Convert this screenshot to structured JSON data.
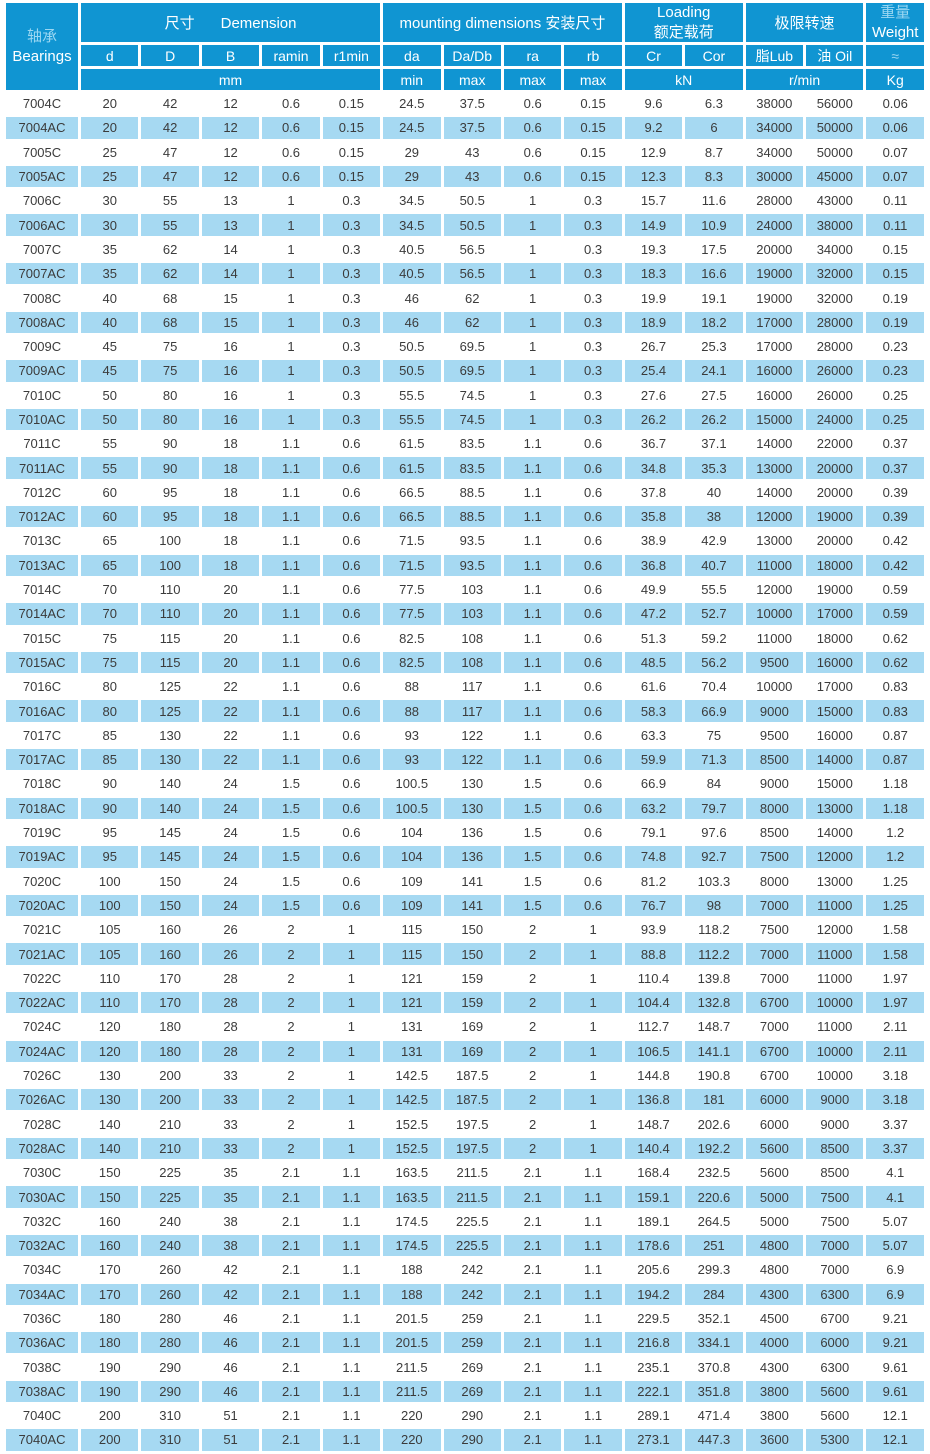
{
  "colors": {
    "header_bg": "#1095d2",
    "row_alt_bg": "#a6d9f2",
    "tint_text": "#9bd7f2",
    "body_text": "#3b3b3b"
  },
  "table": {
    "header": {
      "bearings_zh": "轴承",
      "bearings_en": "Bearings",
      "groups": {
        "dimension_zh": "尺寸",
        "dimension_en": "Demension",
        "mounting": "mounting dimensions 安装尺寸",
        "loading_en": "Loading",
        "loading_zh": "额定载荷",
        "speed": "极限转速",
        "weight_zh": "重量",
        "weight_en": "Weight"
      },
      "sub": [
        "d",
        "D",
        "B",
        "ramin",
        "r1min",
        "da",
        "Da/Db",
        "ra",
        "rb",
        "Cr",
        "Cor",
        "脂Lub",
        "油 Oil",
        "≈"
      ],
      "units": {
        "mm": "mm",
        "da": "min",
        "dadb": "max",
        "ra": "max",
        "rb": "max",
        "kn": "kN",
        "rmin": "r/min",
        "kg": "Kg"
      }
    },
    "rows": [
      [
        "7004C",
        "20",
        "42",
        "12",
        "0.6",
        "0.15",
        "24.5",
        "37.5",
        "0.6",
        "0.15",
        "9.6",
        "6.3",
        "38000",
        "56000",
        "0.06"
      ],
      [
        "7004AC",
        "20",
        "42",
        "12",
        "0.6",
        "0.15",
        "24.5",
        "37.5",
        "0.6",
        "0.15",
        "9.2",
        "6",
        "34000",
        "50000",
        "0.06"
      ],
      [
        "7005C",
        "25",
        "47",
        "12",
        "0.6",
        "0.15",
        "29",
        "43",
        "0.6",
        "0.15",
        "12.9",
        "8.7",
        "34000",
        "50000",
        "0.07"
      ],
      [
        "7005AC",
        "25",
        "47",
        "12",
        "0.6",
        "0.15",
        "29",
        "43",
        "0.6",
        "0.15",
        "12.3",
        "8.3",
        "30000",
        "45000",
        "0.07"
      ],
      [
        "7006C",
        "30",
        "55",
        "13",
        "1",
        "0.3",
        "34.5",
        "50.5",
        "1",
        "0.3",
        "15.7",
        "11.6",
        "28000",
        "43000",
        "0.11"
      ],
      [
        "7006AC",
        "30",
        "55",
        "13",
        "1",
        "0.3",
        "34.5",
        "50.5",
        "1",
        "0.3",
        "14.9",
        "10.9",
        "24000",
        "38000",
        "0.11"
      ],
      [
        "7007C",
        "35",
        "62",
        "14",
        "1",
        "0.3",
        "40.5",
        "56.5",
        "1",
        "0.3",
        "19.3",
        "17.5",
        "20000",
        "34000",
        "0.15"
      ],
      [
        "7007AC",
        "35",
        "62",
        "14",
        "1",
        "0.3",
        "40.5",
        "56.5",
        "1",
        "0.3",
        "18.3",
        "16.6",
        "19000",
        "32000",
        "0.15"
      ],
      [
        "7008C",
        "40",
        "68",
        "15",
        "1",
        "0.3",
        "46",
        "62",
        "1",
        "0.3",
        "19.9",
        "19.1",
        "19000",
        "32000",
        "0.19"
      ],
      [
        "7008AC",
        "40",
        "68",
        "15",
        "1",
        "0.3",
        "46",
        "62",
        "1",
        "0.3",
        "18.9",
        "18.2",
        "17000",
        "28000",
        "0.19"
      ],
      [
        "7009C",
        "45",
        "75",
        "16",
        "1",
        "0.3",
        "50.5",
        "69.5",
        "1",
        "0.3",
        "26.7",
        "25.3",
        "17000",
        "28000",
        "0.23"
      ],
      [
        "7009AC",
        "45",
        "75",
        "16",
        "1",
        "0.3",
        "50.5",
        "69.5",
        "1",
        "0.3",
        "25.4",
        "24.1",
        "16000",
        "26000",
        "0.23"
      ],
      [
        "7010C",
        "50",
        "80",
        "16",
        "1",
        "0.3",
        "55.5",
        "74.5",
        "1",
        "0.3",
        "27.6",
        "27.5",
        "16000",
        "26000",
        "0.25"
      ],
      [
        "7010AC",
        "50",
        "80",
        "16",
        "1",
        "0.3",
        "55.5",
        "74.5",
        "1",
        "0.3",
        "26.2",
        "26.2",
        "15000",
        "24000",
        "0.25"
      ],
      [
        "7011C",
        "55",
        "90",
        "18",
        "1.1",
        "0.6",
        "61.5",
        "83.5",
        "1.1",
        "0.6",
        "36.7",
        "37.1",
        "14000",
        "22000",
        "0.37"
      ],
      [
        "7011AC",
        "55",
        "90",
        "18",
        "1.1",
        "0.6",
        "61.5",
        "83.5",
        "1.1",
        "0.6",
        "34.8",
        "35.3",
        "13000",
        "20000",
        "0.37"
      ],
      [
        "7012C",
        "60",
        "95",
        "18",
        "1.1",
        "0.6",
        "66.5",
        "88.5",
        "1.1",
        "0.6",
        "37.8",
        "40",
        "14000",
        "20000",
        "0.39"
      ],
      [
        "7012AC",
        "60",
        "95",
        "18",
        "1.1",
        "0.6",
        "66.5",
        "88.5",
        "1.1",
        "0.6",
        "35.8",
        "38",
        "12000",
        "19000",
        "0.39"
      ],
      [
        "7013C",
        "65",
        "100",
        "18",
        "1.1",
        "0.6",
        "71.5",
        "93.5",
        "1.1",
        "0.6",
        "38.9",
        "42.9",
        "13000",
        "20000",
        "0.42"
      ],
      [
        "7013AC",
        "65",
        "100",
        "18",
        "1.1",
        "0.6",
        "71.5",
        "93.5",
        "1.1",
        "0.6",
        "36.8",
        "40.7",
        "11000",
        "18000",
        "0.42"
      ],
      [
        "7014C",
        "70",
        "110",
        "20",
        "1.1",
        "0.6",
        "77.5",
        "103",
        "1.1",
        "0.6",
        "49.9",
        "55.5",
        "12000",
        "19000",
        "0.59"
      ],
      [
        "7014AC",
        "70",
        "110",
        "20",
        "1.1",
        "0.6",
        "77.5",
        "103",
        "1.1",
        "0.6",
        "47.2",
        "52.7",
        "10000",
        "17000",
        "0.59"
      ],
      [
        "7015C",
        "75",
        "115",
        "20",
        "1.1",
        "0.6",
        "82.5",
        "108",
        "1.1",
        "0.6",
        "51.3",
        "59.2",
        "11000",
        "18000",
        "0.62"
      ],
      [
        "7015AC",
        "75",
        "115",
        "20",
        "1.1",
        "0.6",
        "82.5",
        "108",
        "1.1",
        "0.6",
        "48.5",
        "56.2",
        "9500",
        "16000",
        "0.62"
      ],
      [
        "7016C",
        "80",
        "125",
        "22",
        "1.1",
        "0.6",
        "88",
        "117",
        "1.1",
        "0.6",
        "61.6",
        "70.4",
        "10000",
        "17000",
        "0.83"
      ],
      [
        "7016AC",
        "80",
        "125",
        "22",
        "1.1",
        "0.6",
        "88",
        "117",
        "1.1",
        "0.6",
        "58.3",
        "66.9",
        "9000",
        "15000",
        "0.83"
      ],
      [
        "7017C",
        "85",
        "130",
        "22",
        "1.1",
        "0.6",
        "93",
        "122",
        "1.1",
        "0.6",
        "63.3",
        "75",
        "9500",
        "16000",
        "0.87"
      ],
      [
        "7017AC",
        "85",
        "130",
        "22",
        "1.1",
        "0.6",
        "93",
        "122",
        "1.1",
        "0.6",
        "59.9",
        "71.3",
        "8500",
        "14000",
        "0.87"
      ],
      [
        "7018C",
        "90",
        "140",
        "24",
        "1.5",
        "0.6",
        "100.5",
        "130",
        "1.5",
        "0.6",
        "66.9",
        "84",
        "9000",
        "15000",
        "1.18"
      ],
      [
        "7018AC",
        "90",
        "140",
        "24",
        "1.5",
        "0.6",
        "100.5",
        "130",
        "1.5",
        "0.6",
        "63.2",
        "79.7",
        "8000",
        "13000",
        "1.18"
      ],
      [
        "7019C",
        "95",
        "145",
        "24",
        "1.5",
        "0.6",
        "104",
        "136",
        "1.5",
        "0.6",
        "79.1",
        "97.6",
        "8500",
        "14000",
        "1.2"
      ],
      [
        "7019AC",
        "95",
        "145",
        "24",
        "1.5",
        "0.6",
        "104",
        "136",
        "1.5",
        "0.6",
        "74.8",
        "92.7",
        "7500",
        "12000",
        "1.2"
      ],
      [
        "7020C",
        "100",
        "150",
        "24",
        "1.5",
        "0.6",
        "109",
        "141",
        "1.5",
        "0.6",
        "81.2",
        "103.3",
        "8000",
        "13000",
        "1.25"
      ],
      [
        "7020AC",
        "100",
        "150",
        "24",
        "1.5",
        "0.6",
        "109",
        "141",
        "1.5",
        "0.6",
        "76.7",
        "98",
        "7000",
        "11000",
        "1.25"
      ],
      [
        "7021C",
        "105",
        "160",
        "26",
        "2",
        "1",
        "115",
        "150",
        "2",
        "1",
        "93.9",
        "118.2",
        "7500",
        "12000",
        "1.58"
      ],
      [
        "7021AC",
        "105",
        "160",
        "26",
        "2",
        "1",
        "115",
        "150",
        "2",
        "1",
        "88.8",
        "112.2",
        "7000",
        "11000",
        "1.58"
      ],
      [
        "7022C",
        "110",
        "170",
        "28",
        "2",
        "1",
        "121",
        "159",
        "2",
        "1",
        "110.4",
        "139.8",
        "7000",
        "11000",
        "1.97"
      ],
      [
        "7022AC",
        "110",
        "170",
        "28",
        "2",
        "1",
        "121",
        "159",
        "2",
        "1",
        "104.4",
        "132.8",
        "6700",
        "10000",
        "1.97"
      ],
      [
        "7024C",
        "120",
        "180",
        "28",
        "2",
        "1",
        "131",
        "169",
        "2",
        "1",
        "112.7",
        "148.7",
        "7000",
        "11000",
        "2.11"
      ],
      [
        "7024AC",
        "120",
        "180",
        "28",
        "2",
        "1",
        "131",
        "169",
        "2",
        "1",
        "106.5",
        "141.1",
        "6700",
        "10000",
        "2.11"
      ],
      [
        "7026C",
        "130",
        "200",
        "33",
        "2",
        "1",
        "142.5",
        "187.5",
        "2",
        "1",
        "144.8",
        "190.8",
        "6700",
        "10000",
        "3.18"
      ],
      [
        "7026AC",
        "130",
        "200",
        "33",
        "2",
        "1",
        "142.5",
        "187.5",
        "2",
        "1",
        "136.8",
        "181",
        "6000",
        "9000",
        "3.18"
      ],
      [
        "7028C",
        "140",
        "210",
        "33",
        "2",
        "1",
        "152.5",
        "197.5",
        "2",
        "1",
        "148.7",
        "202.6",
        "6000",
        "9000",
        "3.37"
      ],
      [
        "7028AC",
        "140",
        "210",
        "33",
        "2",
        "1",
        "152.5",
        "197.5",
        "2",
        "1",
        "140.4",
        "192.2",
        "5600",
        "8500",
        "3.37"
      ],
      [
        "7030C",
        "150",
        "225",
        "35",
        "2.1",
        "1.1",
        "163.5",
        "211.5",
        "2.1",
        "1.1",
        "168.4",
        "232.5",
        "5600",
        "8500",
        "4.1"
      ],
      [
        "7030AC",
        "150",
        "225",
        "35",
        "2.1",
        "1.1",
        "163.5",
        "211.5",
        "2.1",
        "1.1",
        "159.1",
        "220.6",
        "5000",
        "7500",
        "4.1"
      ],
      [
        "7032C",
        "160",
        "240",
        "38",
        "2.1",
        "1.1",
        "174.5",
        "225.5",
        "2.1",
        "1.1",
        "189.1",
        "264.5",
        "5000",
        "7500",
        "5.07"
      ],
      [
        "7032AC",
        "160",
        "240",
        "38",
        "2.1",
        "1.1",
        "174.5",
        "225.5",
        "2.1",
        "1.1",
        "178.6",
        "251",
        "4800",
        "7000",
        "5.07"
      ],
      [
        "7034C",
        "170",
        "260",
        "42",
        "2.1",
        "1.1",
        "188",
        "242",
        "2.1",
        "1.1",
        "205.6",
        "299.3",
        "4800",
        "7000",
        "6.9"
      ],
      [
        "7034AC",
        "170",
        "260",
        "42",
        "2.1",
        "1.1",
        "188",
        "242",
        "2.1",
        "1.1",
        "194.2",
        "284",
        "4300",
        "6300",
        "6.9"
      ],
      [
        "7036C",
        "180",
        "280",
        "46",
        "2.1",
        "1.1",
        "201.5",
        "259",
        "2.1",
        "1.1",
        "229.5",
        "352.1",
        "4500",
        "6700",
        "9.21"
      ],
      [
        "7036AC",
        "180",
        "280",
        "46",
        "2.1",
        "1.1",
        "201.5",
        "259",
        "2.1",
        "1.1",
        "216.8",
        "334.1",
        "4000",
        "6000",
        "9.21"
      ],
      [
        "7038C",
        "190",
        "290",
        "46",
        "2.1",
        "1.1",
        "211.5",
        "269",
        "2.1",
        "1.1",
        "235.1",
        "370.8",
        "4300",
        "6300",
        "9.61"
      ],
      [
        "7038AC",
        "190",
        "290",
        "46",
        "2.1",
        "1.1",
        "211.5",
        "269",
        "2.1",
        "1.1",
        "222.1",
        "351.8",
        "3800",
        "5600",
        "9.61"
      ],
      [
        "7040C",
        "200",
        "310",
        "51",
        "2.1",
        "1.1",
        "220",
        "290",
        "2.1",
        "1.1",
        "289.1",
        "471.4",
        "3800",
        "5600",
        "12.1"
      ],
      [
        "7040AC",
        "200",
        "310",
        "51",
        "2.1",
        "1.1",
        "220",
        "290",
        "2.1",
        "1.1",
        "273.1",
        "447.3",
        "3600",
        "5300",
        "12.1"
      ]
    ]
  }
}
